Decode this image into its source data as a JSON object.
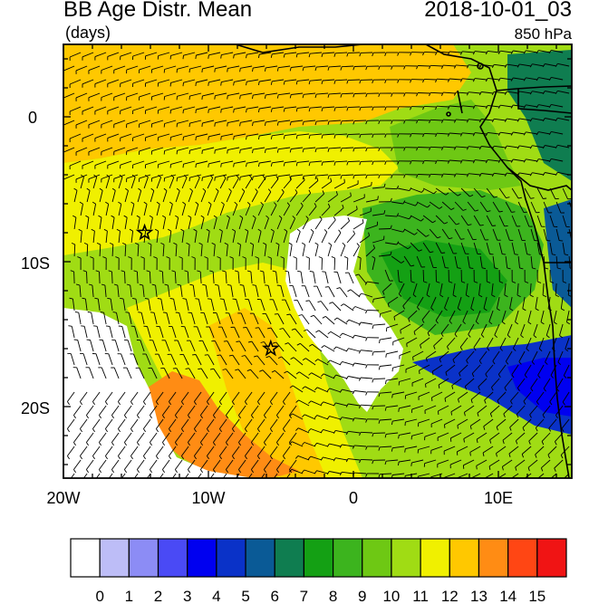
{
  "header": {
    "title": "BB Age Distr. Mean",
    "units": "(days)",
    "datetime": "2018-10-01_03",
    "level": "850 hPa"
  },
  "axes": {
    "lon_labels": [
      "20W",
      "10W",
      "0",
      "10E"
    ],
    "lat_labels": [
      "0",
      "10S",
      "20S"
    ]
  },
  "stations": [
    {
      "name": "station-star-west",
      "lon": -14.4,
      "lat": -8.0
    },
    {
      "name": "station-star-central",
      "lon": -5.7,
      "lat": -16.0
    }
  ],
  "colorbar": {
    "labels": [
      "0",
      "1",
      "2",
      "3",
      "4",
      "5",
      "6",
      "7",
      "8",
      "9",
      "10",
      "11",
      "12",
      "13",
      "14",
      "15"
    ],
    "colors": [
      "#ffffff",
      "#bdbdf7",
      "#8c8cf5",
      "#4a4af5",
      "#0000f0",
      "#0a32c8",
      "#0a5a96",
      "#0f7d50",
      "#14a014",
      "#3cb41e",
      "#6ec814",
      "#a0dc14",
      "#f0f000",
      "#ffc800",
      "#ff8c14",
      "#ff4614",
      "#f01414"
    ]
  }
}
